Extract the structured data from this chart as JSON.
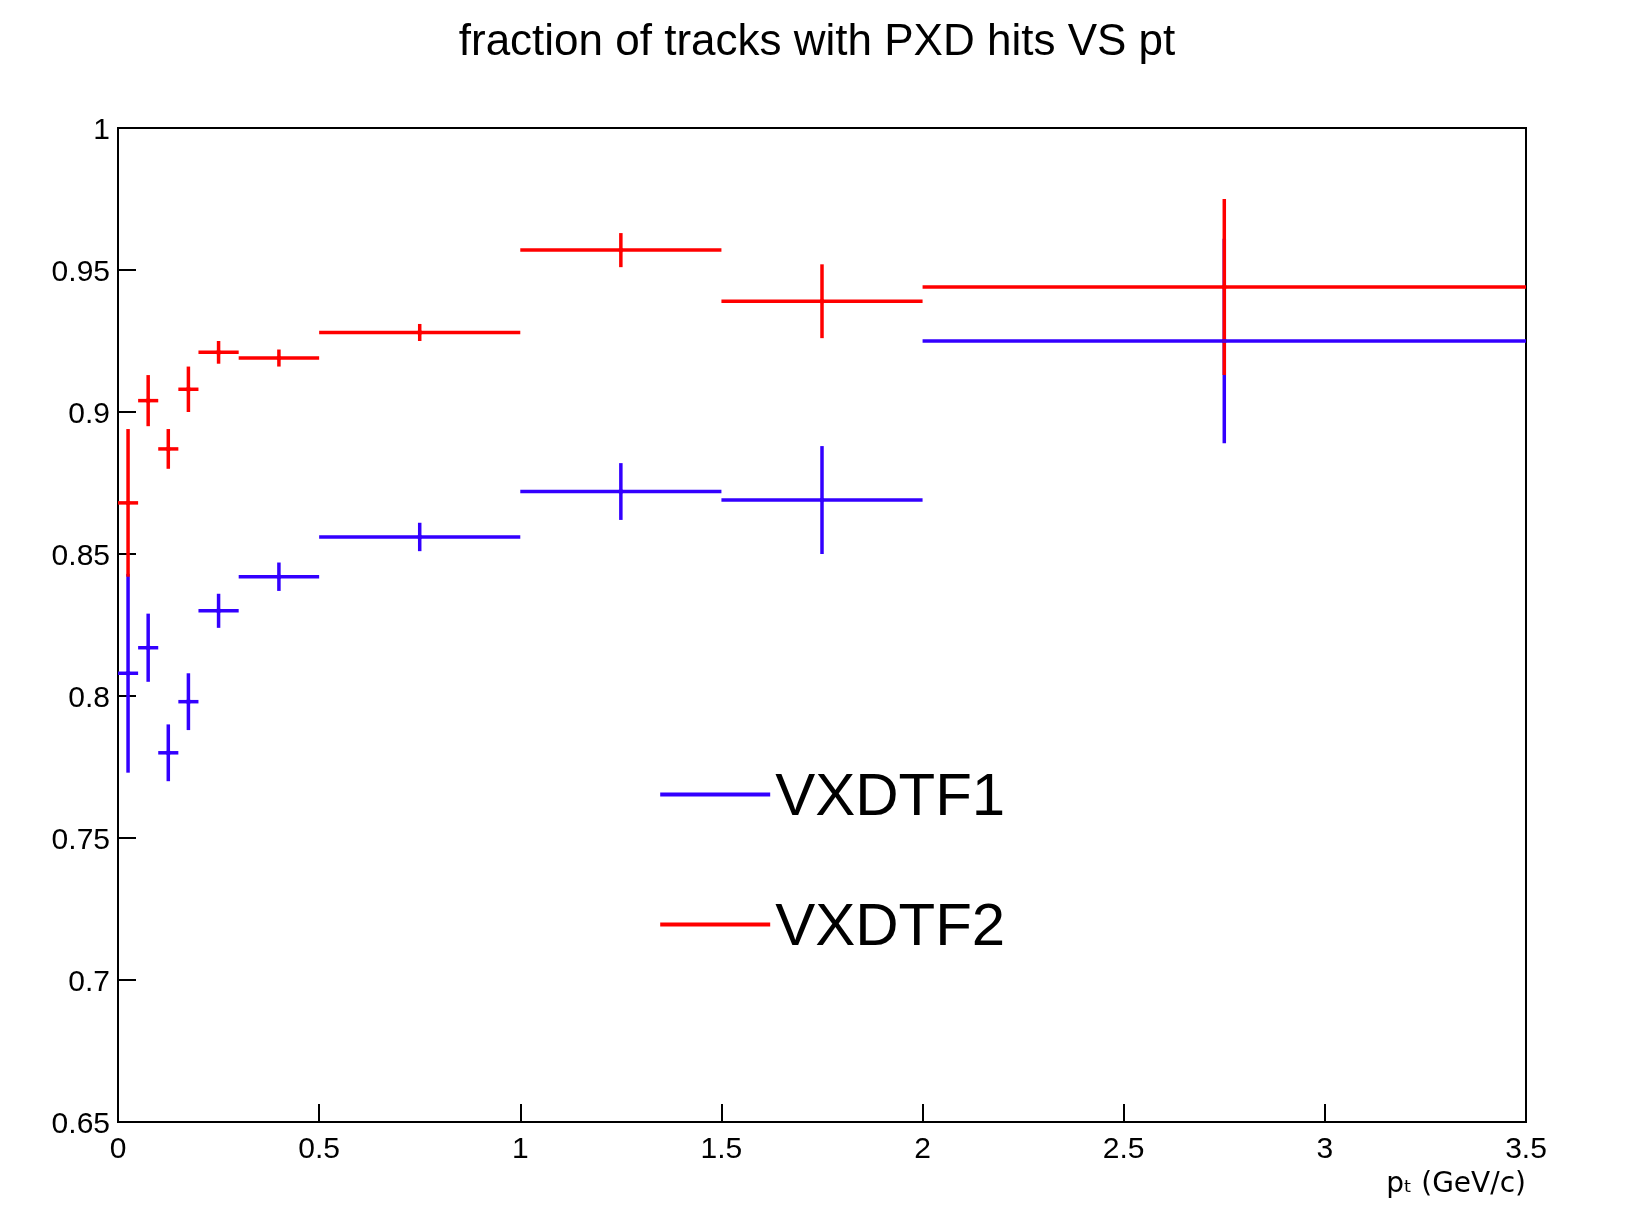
{
  "chart_data": {
    "type": "scatter",
    "title": "fraction of tracks with PXD hits VS pt",
    "xlabel": "pₜ (GeV/c)",
    "grid": false,
    "legend": "bottom",
    "x": [
      0.025,
      0.075,
      0.125,
      0.175,
      0.25,
      0.4,
      0.75,
      1.25,
      1.75,
      2.75
    ],
    "xlim": [
      0,
      3.5
    ],
    "xticks": [
      0,
      0.5,
      1,
      1.5,
      2,
      2.5,
      3,
      3.5
    ],
    "ylim": [
      0.65,
      1
    ],
    "yticks": [
      0.65,
      0.7,
      0.75,
      0.8,
      0.85,
      0.9,
      0.95,
      1
    ],
    "series": [
      {
        "name": "VXDTF1",
        "color": "#3300ff",
        "values": [
          0.808,
          0.817,
          0.78,
          0.798,
          0.83,
          0.842,
          0.856,
          0.872,
          0.869,
          0.925
        ],
        "errors": [
          0.035,
          0.012,
          0.01,
          0.01,
          0.006,
          0.005,
          0.005,
          0.01,
          0.019,
          0.036
        ],
        "xerrors": [
          0.025,
          0.025,
          0.025,
          0.025,
          0.05,
          0.1,
          0.25,
          0.25,
          0.25,
          0.75
        ]
      },
      {
        "name": "VXDTF2",
        "color": "#ff0000",
        "values": [
          0.868,
          0.904,
          0.887,
          0.908,
          0.921,
          0.919,
          0.928,
          0.957,
          0.939,
          0.944
        ],
        "errors": [
          0.026,
          0.009,
          0.007,
          0.008,
          0.004,
          0.003,
          0.003,
          0.006,
          0.013,
          0.031
        ],
        "xerrors": [
          0.025,
          0.025,
          0.025,
          0.025,
          0.05,
          0.1,
          0.25,
          0.25,
          0.25,
          0.75
        ]
      }
    ]
  }
}
